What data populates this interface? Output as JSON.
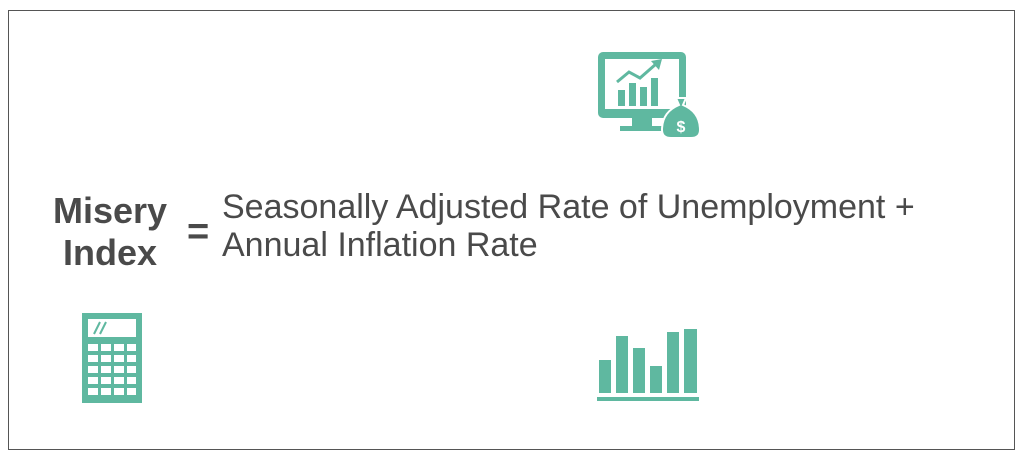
{
  "formula": {
    "lhs_line1": "Misery",
    "lhs_line2": "Index",
    "equals": "=",
    "rhs_line1": "Seasonally Adjusted Rate of Unemployment +",
    "rhs_line2": "Annual Inflation Rate"
  },
  "icons": {
    "monitor": "monitor-chart-money-bag-icon",
    "calculator": "calculator-icon",
    "bars": "bar-chart-icon",
    "color": "#5fb8a0"
  }
}
